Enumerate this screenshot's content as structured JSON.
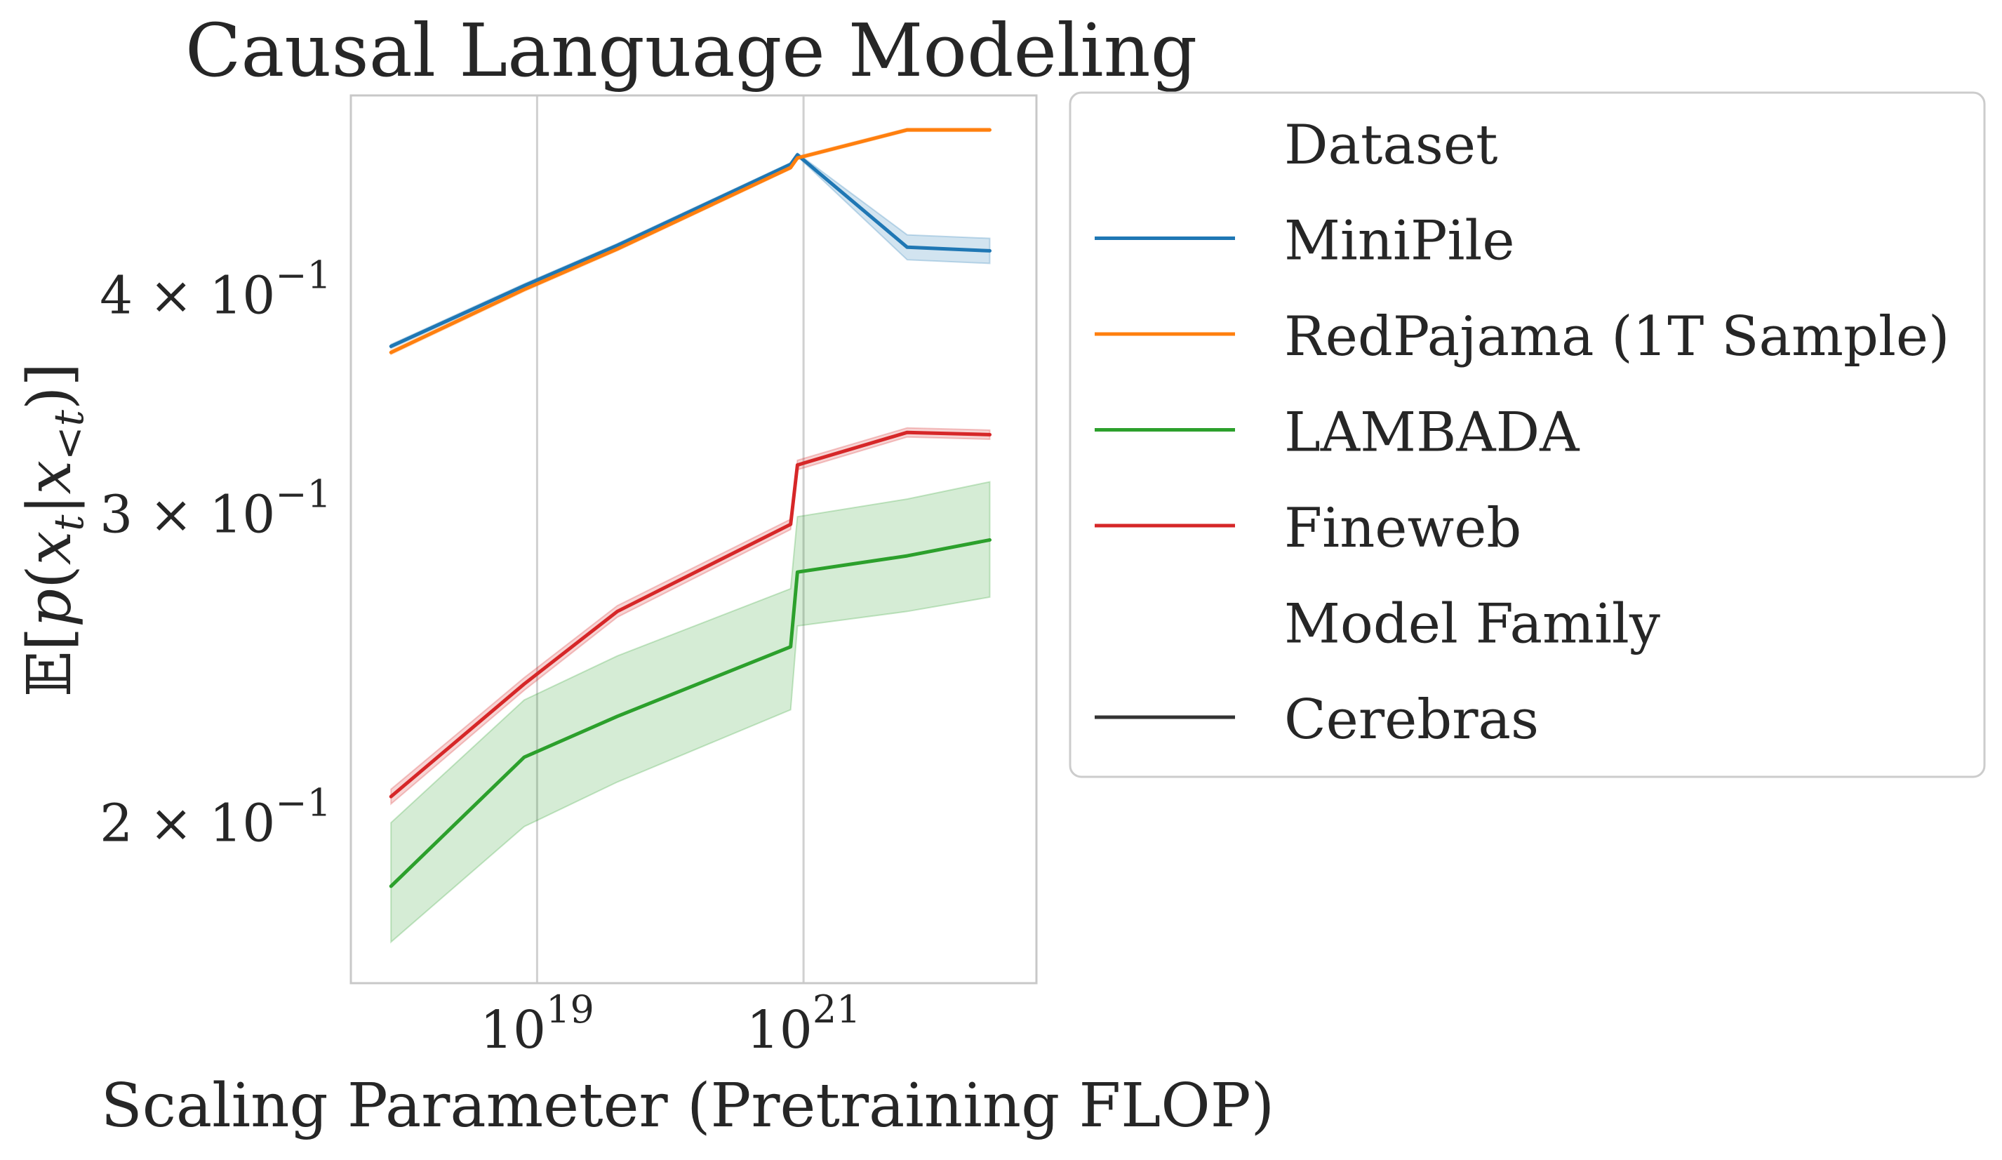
{
  "chart_data": {
    "type": "line",
    "title": "Causal Language Modeling",
    "xlabel": "Scaling Parameter (Pretraining FLOP)",
    "ylabel": "𝔼p(x_t|x_{<t})",
    "xscale": "log",
    "yscale": "log",
    "xlim": [
      4e+17,
      5.6e+22
    ],
    "ylim": [
      0.162,
      0.52
    ],
    "grid": true,
    "xticks": [
      {
        "value": 1e+19,
        "base": "10",
        "exp": "19"
      },
      {
        "value": 1e+21,
        "base": "10",
        "exp": "21"
      }
    ],
    "yticks": [
      {
        "value": 0.2,
        "mant": "2",
        "base": " × 10",
        "exp": "−1"
      },
      {
        "value": 0.3,
        "mant": "3",
        "base": " × 10",
        "exp": "−1"
      },
      {
        "value": 0.4,
        "mant": "4",
        "base": " × 10",
        "exp": "−1"
      }
    ],
    "x": [
      8e+17,
      8e+18,
      4e+19,
      8e+20,
      9e+20,
      6e+21,
      2.5e+22
    ],
    "series": [
      {
        "name": "MiniPile",
        "color": "#1f77b4",
        "values": [
          0.374,
          0.405,
          0.427,
          0.475,
          0.481,
          0.426,
          0.424
        ],
        "band_low": [
          0.373,
          0.404,
          0.426,
          0.474,
          0.48,
          0.419,
          0.417
        ],
        "band_high": [
          0.375,
          0.406,
          0.428,
          0.476,
          0.482,
          0.433,
          0.431
        ]
      },
      {
        "name": "RedPajama (1T Sample)",
        "color": "#ff7f0e",
        "values": [
          0.371,
          0.403,
          0.425,
          0.473,
          0.479,
          0.497,
          0.497
        ],
        "band_low": [
          0.37,
          0.402,
          0.424,
          0.472,
          0.478,
          0.496,
          0.496
        ],
        "band_high": [
          0.372,
          0.404,
          0.426,
          0.474,
          0.48,
          0.498,
          0.498
        ]
      },
      {
        "name": "LAMBADA",
        "color": "#2ca02c",
        "values": [
          0.184,
          0.218,
          0.23,
          0.252,
          0.278,
          0.284,
          0.29
        ],
        "band_low": [
          0.171,
          0.199,
          0.211,
          0.232,
          0.259,
          0.264,
          0.269
        ],
        "band_high": [
          0.2,
          0.235,
          0.249,
          0.272,
          0.299,
          0.306,
          0.313
        ]
      },
      {
        "name": "Fineweb",
        "color": "#d62728",
        "values": [
          0.207,
          0.24,
          0.264,
          0.296,
          0.32,
          0.334,
          0.333
        ],
        "band_low": [
          0.205,
          0.238,
          0.262,
          0.294,
          0.318,
          0.332,
          0.331
        ],
        "band_high": [
          0.209,
          0.242,
          0.266,
          0.298,
          0.322,
          0.336,
          0.335
        ]
      }
    ],
    "legend": {
      "placement": "outside-right-top",
      "entries": [
        {
          "label": "Dataset",
          "color": "",
          "is_header": true
        },
        {
          "label": "MiniPile",
          "color": "#1f77b4",
          "is_header": false
        },
        {
          "label": "RedPajama (1T Sample)",
          "color": "#ff7f0e",
          "is_header": false
        },
        {
          "label": "LAMBADA",
          "color": "#2ca02c",
          "is_header": false
        },
        {
          "label": "Fineweb",
          "color": "#d62728",
          "is_header": false
        },
        {
          "label": "Model Family",
          "color": "",
          "is_header": true
        },
        {
          "label": "Cerebras",
          "color": "#333333",
          "is_header": false
        }
      ]
    }
  }
}
